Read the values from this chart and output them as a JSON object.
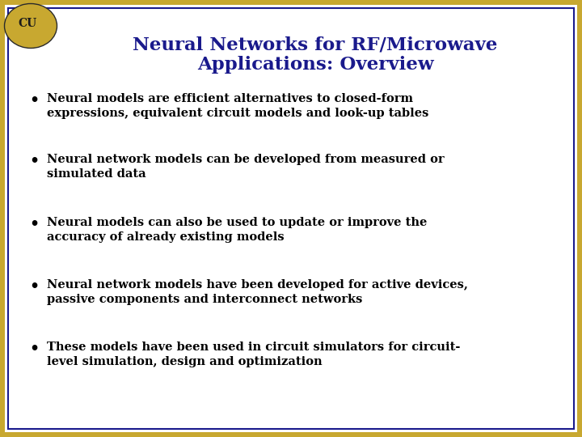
{
  "title_line1": "Neural Networks for RF/Microwave",
  "title_line2": "Applications: Overview",
  "title_color": "#1a1a8c",
  "background_color": "#ffffff",
  "border_color_outer": "#c8a830",
  "border_color_inner": "#1a1a8c",
  "bullet_points": [
    [
      "Neural models are efficient alternatives to closed-form",
      "expressions, equivalent circuit models and look-up tables"
    ],
    [
      "Neural network models can be developed from measured or",
      "simulated data"
    ],
    [
      "Neural models can also be used to update or improve the",
      "accuracy of already existing models"
    ],
    [
      "Neural network models have been developed for active devices,",
      "passive components and interconnect networks"
    ],
    [
      "These models have been used in circuit simulators for circuit-",
      "level simulation, design and optimization"
    ]
  ],
  "bullet_color": "#000000",
  "bullet_font_size": 10.5,
  "title_font_size": 16.5,
  "figsize": [
    7.2,
    5.4
  ],
  "dpi": 100
}
